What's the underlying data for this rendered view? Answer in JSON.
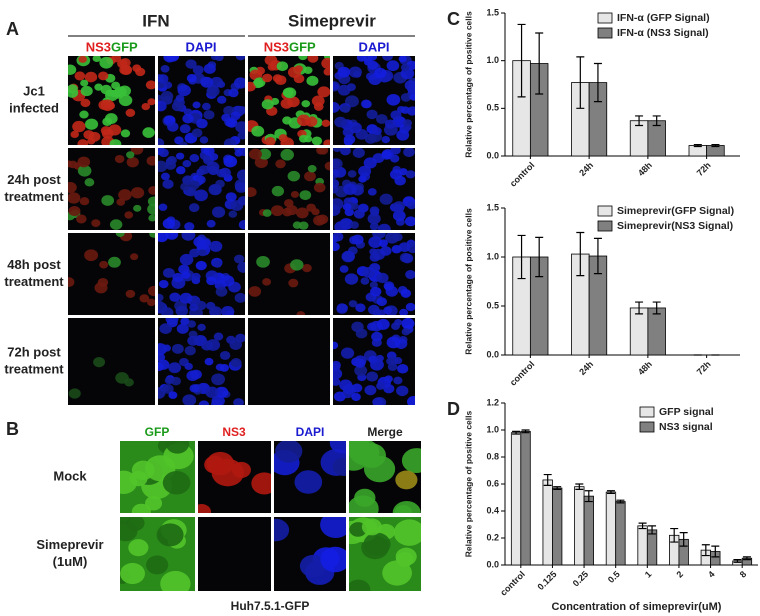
{
  "panels": {
    "A": {
      "label": "A",
      "groups": [
        "IFN",
        "Simeprevir"
      ],
      "ns3": "NS3",
      "gfp": "GFP",
      "dapi": "DAPI",
      "rows": [
        [
          "Jc1",
          "infected"
        ],
        [
          "24h post",
          "treatment"
        ],
        [
          "48h post",
          "treatment"
        ],
        [
          "72h post",
          "treatment"
        ]
      ]
    },
    "B": {
      "label": "B",
      "columns": [
        "GFP",
        "NS3",
        "DAPI",
        "Merge"
      ],
      "rows": [
        [
          "Mock"
        ],
        [
          "Simeprevir",
          "(1uM)"
        ]
      ],
      "caption": "Huh7.5.1-GFP"
    },
    "C": {
      "label": "C"
    },
    "D": {
      "label": "D"
    }
  },
  "chart_data": [
    {
      "type": "bar",
      "ylabel": "Relative percentage of positive cells",
      "categories": [
        "control",
        "24h",
        "48h",
        "72h"
      ],
      "series": [
        {
          "name": "IFN-α (GFP Signal)",
          "color": "#e6e6e6",
          "values": [
            1.0,
            0.77,
            0.37,
            0.11
          ],
          "errors": [
            0.38,
            0.27,
            0.05,
            0.01
          ]
        },
        {
          "name": "IFN-α (NS3 Signal)",
          "color": "#808080",
          "values": [
            0.97,
            0.77,
            0.37,
            0.11
          ],
          "errors": [
            0.32,
            0.2,
            0.05,
            0.01
          ]
        }
      ],
      "ylim": [
        0,
        1.5
      ],
      "yticks": [
        {
          "value": 0,
          "label": "0.0"
        },
        {
          "value": 0.5,
          "label": "0.5"
        },
        {
          "value": 1,
          "label": "1.0"
        },
        {
          "value": 1.5,
          "label": "1.5"
        }
      ]
    },
    {
      "type": "bar",
      "ylabel": "Relative percentage of positive cells",
      "categories": [
        "control",
        "24h",
        "48h",
        "72h"
      ],
      "series": [
        {
          "name": "Simeprevir(GFP Signal)",
          "color": "#e6e6e6",
          "values": [
            1.0,
            1.03,
            0.48,
            0
          ],
          "errors": [
            0.22,
            0.22,
            0.06,
            0
          ]
        },
        {
          "name": "Simeprevir(NS3 Signal)",
          "color": "#808080",
          "values": [
            1.0,
            1.01,
            0.48,
            0
          ],
          "errors": [
            0.2,
            0.18,
            0.06,
            0
          ]
        }
      ],
      "ylim": [
        0,
        1.5
      ],
      "yticks": [
        {
          "value": 0,
          "label": "0.0"
        },
        {
          "value": 0.5,
          "label": "0.5"
        },
        {
          "value": 1,
          "label": "1.0"
        },
        {
          "value": 1.5,
          "label": "1.5"
        }
      ]
    },
    {
      "type": "bar",
      "ylabel": "Relative percentage of positive cells",
      "xlabel": "Concentration of simeprevir(uM)",
      "categories": [
        "control",
        "0.125",
        "0.25",
        "0.5",
        "1",
        "2",
        "4",
        "8"
      ],
      "series": [
        {
          "name": "GFP signal",
          "color": "#e6e6e6",
          "values": [
            0.98,
            0.63,
            0.58,
            0.54,
            0.29,
            0.22,
            0.11,
            0.03
          ],
          "errors": [
            0.01,
            0.04,
            0.02,
            0.01,
            0.02,
            0.05,
            0.04,
            0.01
          ]
        },
        {
          "name": "NS3 signal",
          "color": "#808080",
          "values": [
            0.99,
            0.57,
            0.51,
            0.47,
            0.26,
            0.19,
            0.1,
            0.05
          ],
          "errors": [
            0.01,
            0.01,
            0.04,
            0.01,
            0.03,
            0.05,
            0.04,
            0.01
          ]
        }
      ],
      "ylim": [
        0,
        1.2
      ],
      "yticks": [
        {
          "value": 0,
          "label": "0.0"
        },
        {
          "value": 0.2,
          "label": "0.2"
        },
        {
          "value": 0.4,
          "label": "0.4"
        },
        {
          "value": 0.6,
          "label": "0.6"
        },
        {
          "value": 0.8,
          "label": "0.8"
        },
        {
          "value": 1,
          "label": "1.0"
        },
        {
          "value": 1.2,
          "label": "1.2"
        }
      ]
    }
  ]
}
